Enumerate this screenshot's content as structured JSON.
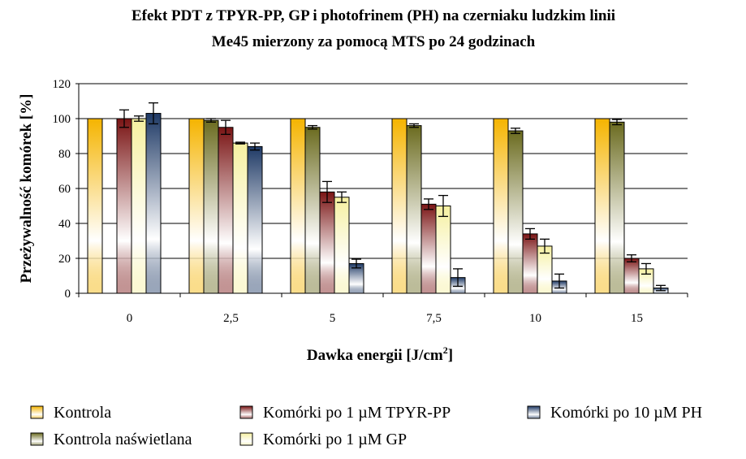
{
  "chart_data": {
    "type": "bar",
    "title_line1": "Efekt PDT z TPYR-PP, GP i photofrinem (PH) na czerniaku ludzkim linii",
    "title_line2": "Me45 mierzony za pomocą MTS po 24 godzinach",
    "xlabel": "Dawka energii [J/cm",
    "xlabel_sup": "2",
    "xlabel_end": "]",
    "ylabel": "Przeżywalność komórek [%]",
    "ylim": [
      0,
      120
    ],
    "yticks": [
      "0",
      "20",
      "40",
      "60",
      "80",
      "100",
      "120"
    ],
    "categories": [
      "0",
      "2,5",
      "5",
      "7,5",
      "10",
      "15"
    ],
    "grid": "horizontal",
    "legend_position": "bottom",
    "series": [
      {
        "name": "Kontrola",
        "color": "#f5b400",
        "values": [
          100,
          100,
          100,
          100,
          100,
          100
        ],
        "errors": [
          0,
          0,
          0,
          0,
          0,
          0
        ]
      },
      {
        "name": "Kontrola naświetlana",
        "color": "#6b6b1f",
        "values": [
          null,
          99,
          95,
          96,
          93,
          98
        ],
        "errors": [
          0,
          1,
          1,
          1,
          1.5,
          1.5
        ]
      },
      {
        "name": "Komórki po 1 µM TPYR-PP",
        "color": "#7a1414",
        "values": [
          100,
          95,
          58,
          51,
          34,
          20
        ],
        "errors": [
          5,
          4,
          6,
          3,
          3,
          2
        ]
      },
      {
        "name": "Komórki po 1 µM GP",
        "color": "#f6f0a0",
        "values": [
          100,
          86,
          55,
          50,
          27,
          14
        ],
        "errors": [
          1.5,
          0.5,
          3,
          6,
          4,
          3
        ]
      },
      {
        "name": "Komórki po 10 µM PH",
        "color": "#1f3a66",
        "values": [
          103,
          84,
          17,
          9,
          7,
          3
        ],
        "errors": [
          6,
          2,
          2.5,
          5,
          4,
          1.5
        ]
      }
    ],
    "legend_rows": [
      [
        "Kontrola",
        "Komórki po 1 µM TPYR-PP",
        "Komórki po 10 µM PH"
      ],
      [
        "Kontrola naświetlana",
        "Komórki po 1 µM GP"
      ]
    ]
  }
}
